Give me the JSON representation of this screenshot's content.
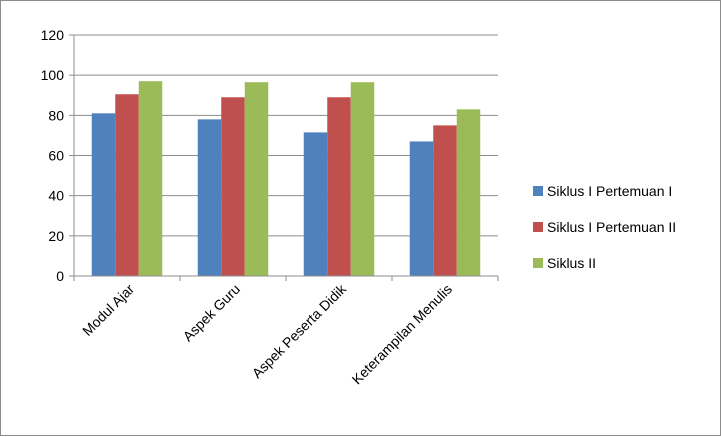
{
  "chart_data": {
    "type": "bar",
    "title": "",
    "xlabel": "",
    "ylabel": "",
    "categories": [
      "Modul Ajar",
      "Aspek Guru",
      "Aspek Peserta Didik",
      "Keterampilan Menulis"
    ],
    "ylim": [
      0,
      120
    ],
    "yticks": [
      0,
      20,
      40,
      60,
      80,
      100,
      120
    ],
    "grid": true,
    "legend_position": "right",
    "series": [
      {
        "name": "Siklus I Pertemuan I",
        "color": "#4f81bd",
        "values": [
          81,
          78,
          71.5,
          67
        ]
      },
      {
        "name": "Siklus I Pertemuan II",
        "color": "#c0504d",
        "values": [
          90.5,
          89,
          89,
          75
        ]
      },
      {
        "name": "Siklus II",
        "color": "#9bbb59",
        "values": [
          97,
          96.5,
          96.5,
          83
        ]
      }
    ]
  }
}
